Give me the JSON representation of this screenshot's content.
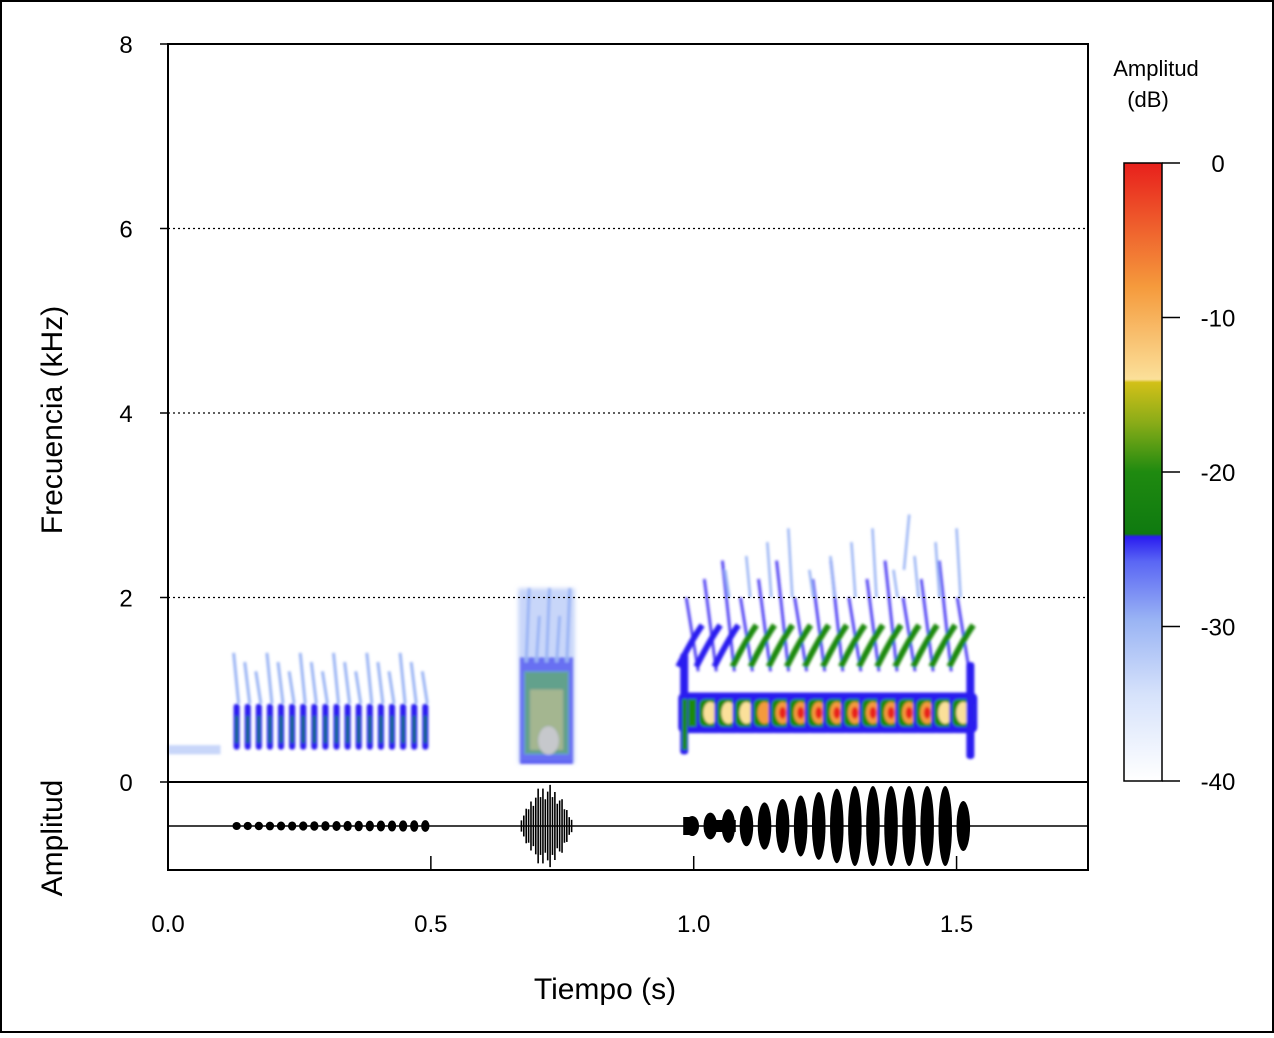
{
  "chart_data": {
    "type": "heatmap",
    "subtype": "spectrogram-with-oscillogram",
    "x_axis": {
      "label": "Tiempo (s)",
      "range": [
        0,
        1.75
      ],
      "ticks": [
        0.0,
        0.5,
        1.0,
        1.5
      ],
      "tick_labels": [
        "0.0",
        "0.5",
        "1.0",
        "1.5"
      ]
    },
    "y_axis_spectrogram": {
      "label": "Frecuencia (kHz)",
      "range": [
        0,
        8
      ],
      "ticks": [
        0,
        2,
        4,
        6,
        8
      ],
      "tick_labels": [
        "0",
        "2",
        "4",
        "6",
        "8"
      ],
      "grid": "dotted at 2, 4, 6"
    },
    "y_axis_oscillogram": {
      "label": "Amplitud"
    },
    "colorbar": {
      "title_lines": [
        "Amplitud",
        "(dB)"
      ],
      "range": [
        -40,
        0
      ],
      "ticks": [
        0,
        -10,
        -20,
        -30,
        -40
      ],
      "tick_labels": [
        "0",
        "-10",
        "-20",
        "-30",
        "-40"
      ],
      "colors": {
        "high": "#e8201c",
        "orange": "#f59a3c",
        "pale_yellow": "#fbe09a",
        "olive": "#c8c018",
        "green": "#1f8a10",
        "dark_green": "#0f7a10",
        "blue": "#2a1cf0",
        "light_blue": "#9ab4f4",
        "low": "#ffffff"
      }
    },
    "calls": [
      {
        "name": "call-1",
        "t_start": 0.12,
        "t_end": 0.5,
        "pulses": 18,
        "f_low": 0.3,
        "f_high": 1.4,
        "peak_db": -20,
        "envelope": "small, steady"
      },
      {
        "name": "call-2",
        "t_start": 0.67,
        "t_end": 0.77,
        "pulses": 1,
        "f_low": 0.2,
        "f_high": 2.1,
        "peak_db": -12,
        "envelope": "short burst"
      },
      {
        "name": "call-3",
        "t_start": 0.98,
        "t_end": 1.53,
        "pulses": 16,
        "f_low": 0.3,
        "f_high": 2.9,
        "peak_db": -2,
        "envelope": "rising then falling"
      }
    ]
  }
}
